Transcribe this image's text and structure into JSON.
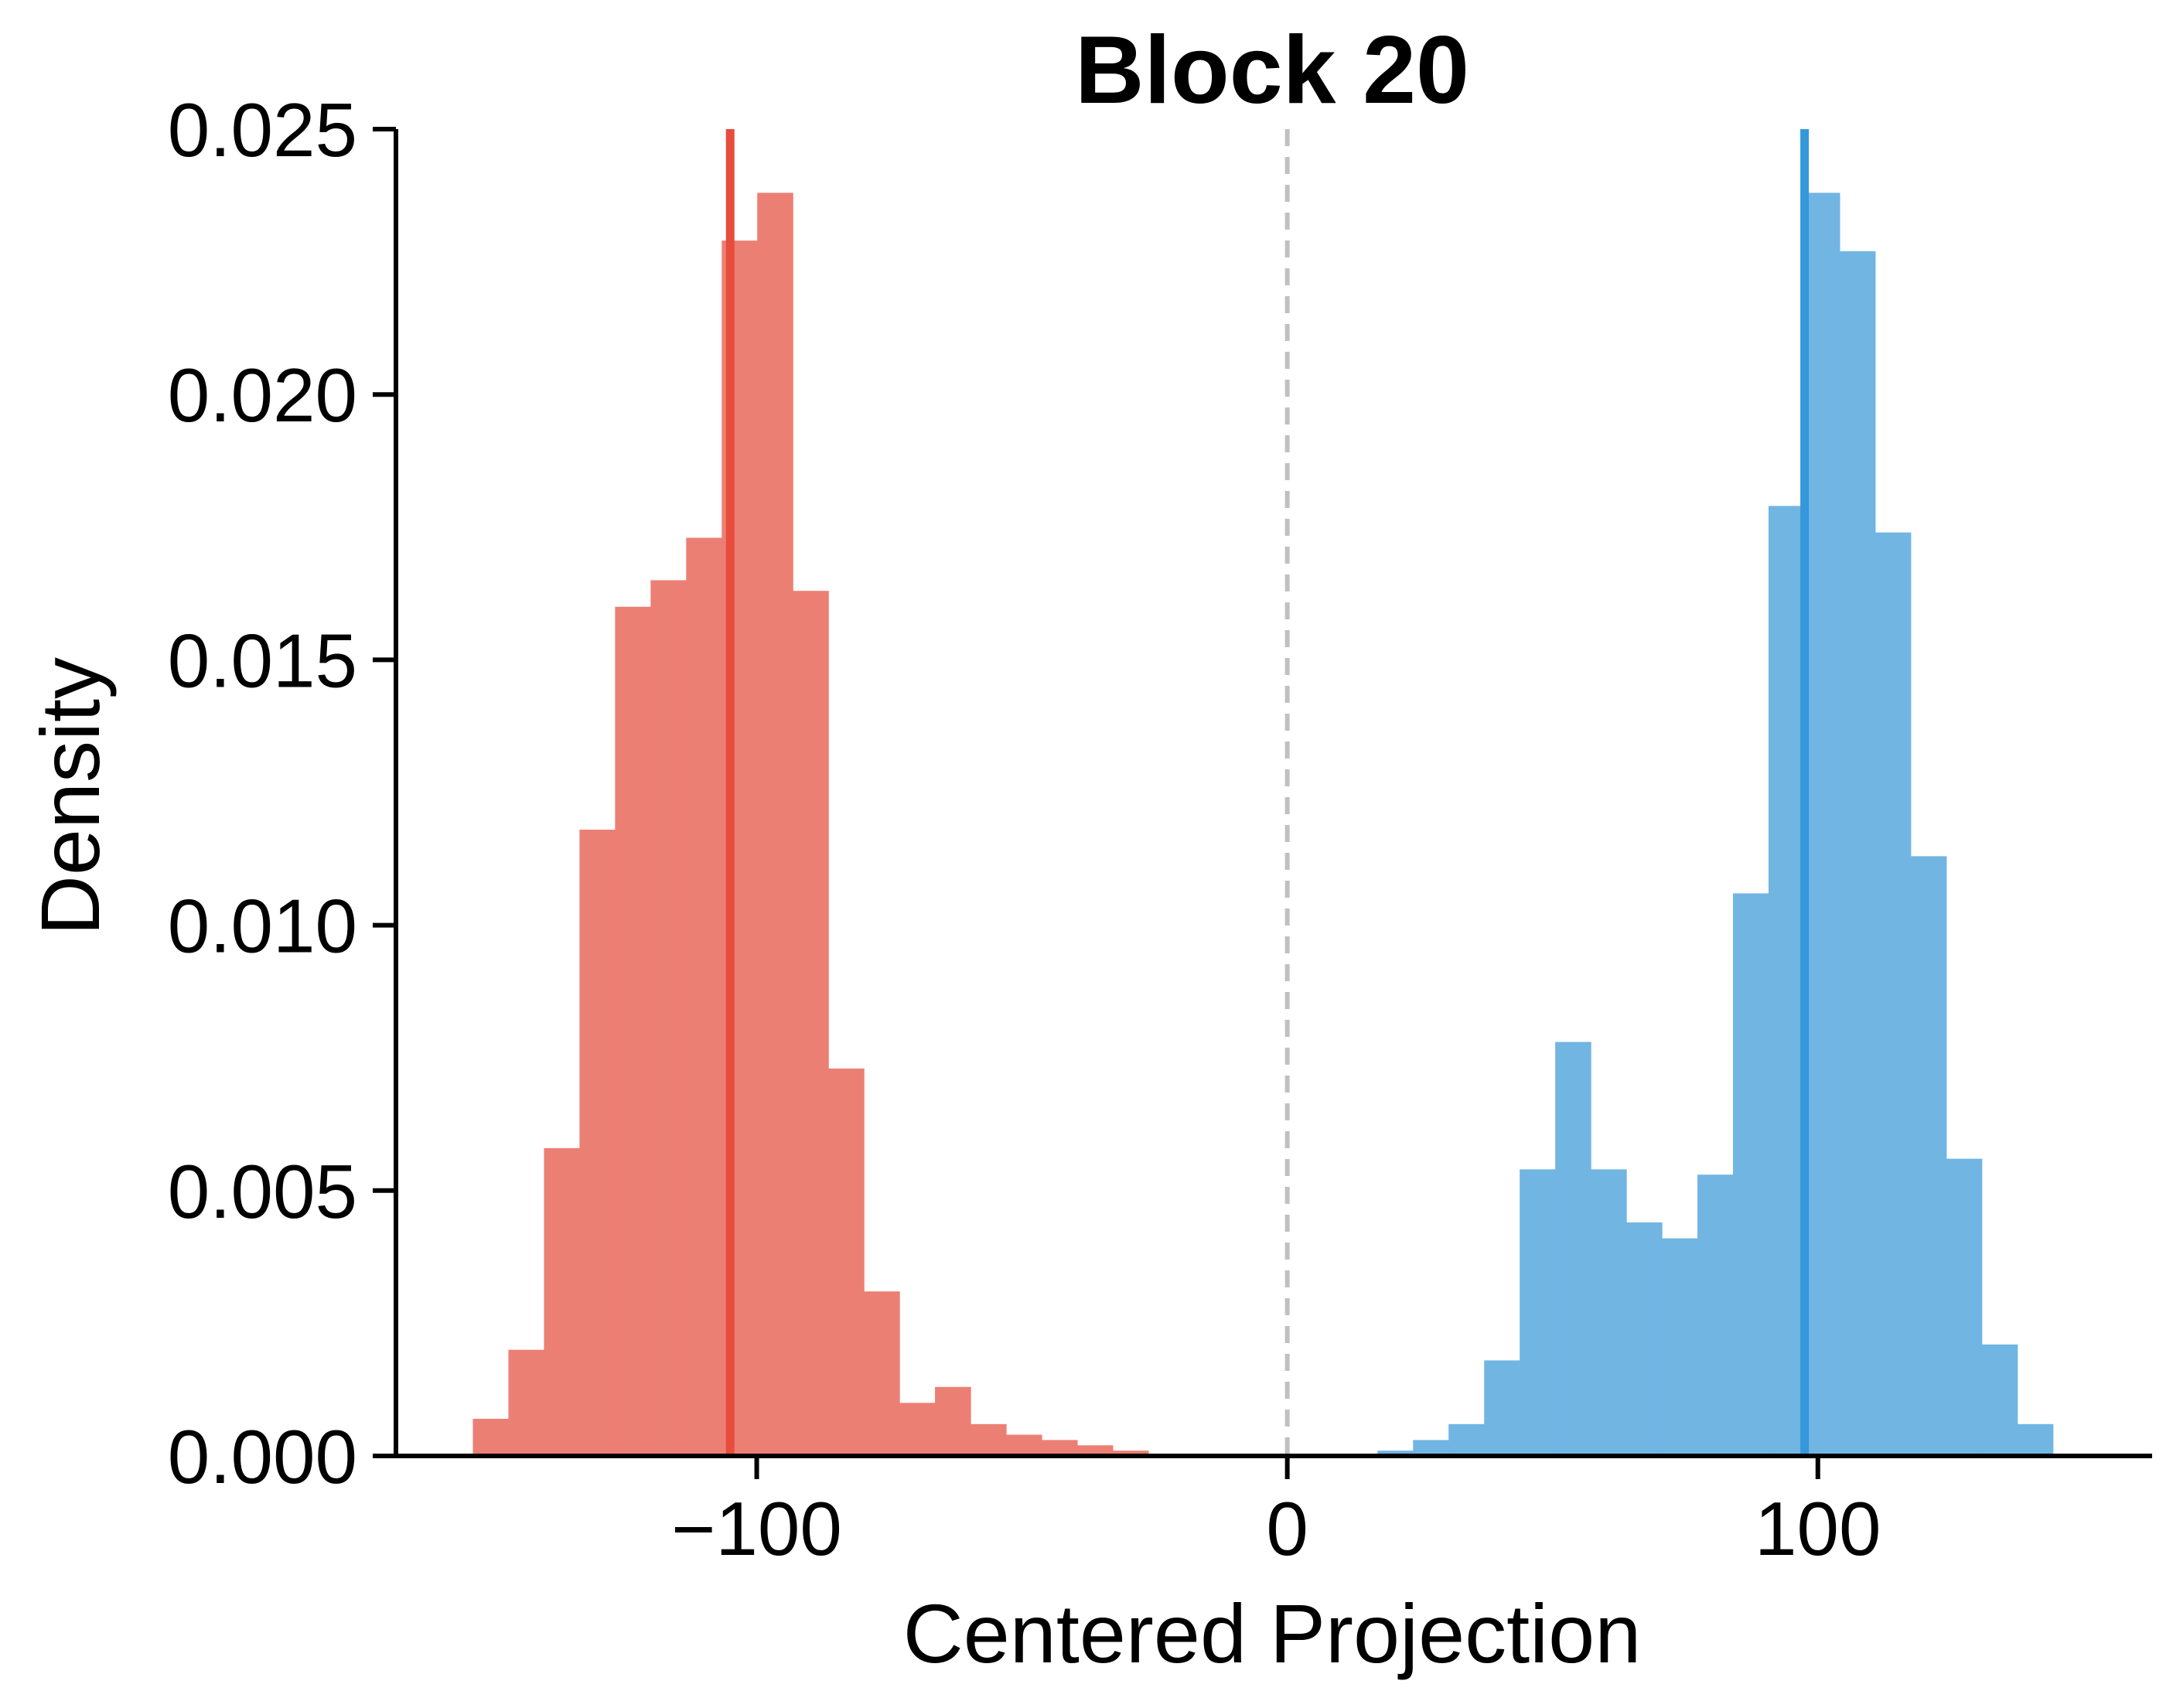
{
  "chart_data": {
    "type": "histogram",
    "title": "Block 20",
    "xlabel": "Centered Projection",
    "ylabel": "Density",
    "xlim": [
      -168,
      163
    ],
    "ylim": [
      0,
      0.025
    ],
    "xticks": [
      -100,
      0,
      100
    ],
    "xtick_labels": [
      "−100",
      "0",
      "100"
    ],
    "yticks": [
      0.0,
      0.005,
      0.01,
      0.015,
      0.02,
      0.025
    ],
    "ytick_labels": [
      "0.000",
      "0.005",
      "0.010",
      "0.015",
      "0.020",
      "0.025"
    ],
    "grid": false,
    "legend": "none",
    "series": [
      {
        "color": "#e74c3c",
        "bar_color": "#ec7f74",
        "bin_start": -153.5,
        "bin_width": 6.7,
        "densities": [
          0.0007,
          0.002,
          0.0058,
          0.0118,
          0.016,
          0.0165,
          0.0173,
          0.0229,
          0.0238,
          0.0163,
          0.0073,
          0.0031,
          0.001,
          0.0013,
          0.0006,
          0.0004,
          0.0003,
          0.0002,
          0.0001
        ],
        "mean": -105
      },
      {
        "color": "#3498db",
        "bar_color": "#71b5e3",
        "bin_start": 17,
        "bin_width": 6.7,
        "densities": [
          0.0001,
          0.0003,
          0.0006,
          0.0018,
          0.0054,
          0.0078,
          0.0054,
          0.0044,
          0.0041,
          0.0053,
          0.0106,
          0.0179,
          0.0238,
          0.0227,
          0.0174,
          0.0113,
          0.0056,
          0.0021,
          0.0006
        ],
        "mean": 97.5
      }
    ],
    "threshold": {
      "x": 0,
      "color": "#c0c0c0",
      "style": "dashed"
    }
  }
}
